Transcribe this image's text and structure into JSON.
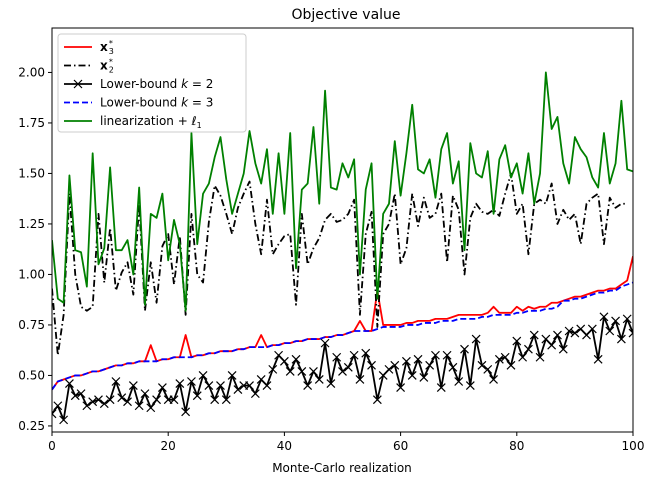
{
  "chart_data": {
    "type": "line",
    "title": "Objective value",
    "xlabel": "Monte-Carlo realization",
    "ylabel": "",
    "xlim": [
      0,
      100
    ],
    "ylim": [
      0.22,
      2.22
    ],
    "xticks": [
      0,
      20,
      40,
      60,
      80,
      100
    ],
    "yticks": [
      0.25,
      0.5,
      0.75,
      1.0,
      1.25,
      1.5,
      1.75,
      2.0
    ],
    "xtick_labels": [
      "0",
      "20",
      "40",
      "60",
      "80",
      "100"
    ],
    "ytick_labels": [
      "0.25",
      "0.50",
      "0.75",
      "1.00",
      "1.25",
      "1.50",
      "1.75",
      "2.00"
    ],
    "grid": false,
    "legend_position": "top-left",
    "series": [
      {
        "name": "x3*",
        "legend_main": "x",
        "legend_sub": "3",
        "legend_sup": "*",
        "color": "#ff0000",
        "style": "solid",
        "values": [
          0.43,
          0.47,
          0.48,
          0.49,
          0.5,
          0.5,
          0.51,
          0.52,
          0.52,
          0.53,
          0.54,
          0.55,
          0.55,
          0.56,
          0.56,
          0.57,
          0.57,
          0.65,
          0.57,
          0.58,
          0.58,
          0.59,
          0.59,
          0.7,
          0.59,
          0.6,
          0.6,
          0.61,
          0.61,
          0.62,
          0.62,
          0.62,
          0.63,
          0.63,
          0.64,
          0.64,
          0.7,
          0.64,
          0.65,
          0.65,
          0.66,
          0.66,
          0.67,
          0.67,
          0.68,
          0.68,
          0.68,
          0.69,
          0.69,
          0.7,
          0.7,
          0.71,
          0.72,
          0.77,
          0.72,
          0.72,
          0.92,
          0.75,
          0.75,
          0.75,
          0.75,
          0.76,
          0.76,
          0.77,
          0.77,
          0.77,
          0.78,
          0.78,
          0.78,
          0.79,
          0.8,
          0.8,
          0.8,
          0.8,
          0.8,
          0.81,
          0.84,
          0.81,
          0.81,
          0.81,
          0.84,
          0.82,
          0.84,
          0.83,
          0.84,
          0.84,
          0.86,
          0.86,
          0.87,
          0.88,
          0.89,
          0.89,
          0.9,
          0.91,
          0.92,
          0.92,
          0.93,
          0.93,
          0.95,
          0.97,
          1.09
        ]
      },
      {
        "name": "x2*",
        "legend_main": "x",
        "legend_sub": "2",
        "legend_sup": "*",
        "color": "#000000",
        "style": "dashdot",
        "values": [
          0.93,
          0.6,
          0.8,
          1.4,
          1.0,
          0.84,
          0.82,
          0.84,
          1.3,
          0.96,
          1.23,
          0.92,
          1.01,
          1.06,
          0.9,
          1.35,
          0.82,
          1.06,
          0.86,
          1.14,
          1.2,
          0.95,
          1.19,
          0.8,
          1.3,
          1.0,
          0.96,
          1.26,
          1.44,
          1.39,
          1.3,
          1.2,
          1.33,
          1.4,
          1.46,
          1.25,
          1.1,
          1.37,
          1.1,
          1.15,
          1.19,
          1.2,
          0.85,
          1.3,
          1.05,
          1.13,
          1.18,
          1.27,
          1.3,
          1.26,
          1.27,
          1.3,
          1.37,
          0.8,
          1.2,
          1.31,
          0.74,
          1.2,
          1.25,
          1.4,
          1.05,
          1.13,
          1.4,
          1.24,
          1.38,
          1.28,
          1.3,
          1.4,
          1.06,
          1.39,
          1.32,
          1.0,
          1.28,
          1.35,
          1.31,
          1.3,
          1.32,
          1.29,
          1.4,
          1.5,
          1.3,
          1.35,
          1.1,
          1.35,
          1.37,
          1.35,
          1.45,
          1.25,
          1.32,
          1.27,
          1.3,
          1.15,
          1.35,
          1.38,
          1.4,
          1.15,
          1.38,
          1.33,
          1.35,
          1.35
        ]
      },
      {
        "name": "Lower-bound k = 2",
        "legend_main": "Lower-bound ",
        "legend_k": "k",
        "legend_tail": " = 2",
        "color": "#000000",
        "style": "solid",
        "marker": "x",
        "values": [
          0.31,
          0.35,
          0.28,
          0.46,
          0.4,
          0.41,
          0.35,
          0.37,
          0.38,
          0.36,
          0.38,
          0.47,
          0.39,
          0.37,
          0.45,
          0.35,
          0.41,
          0.34,
          0.38,
          0.44,
          0.38,
          0.38,
          0.46,
          0.32,
          0.47,
          0.4,
          0.5,
          0.45,
          0.38,
          0.45,
          0.38,
          0.5,
          0.43,
          0.45,
          0.45,
          0.41,
          0.48,
          0.45,
          0.53,
          0.6,
          0.57,
          0.52,
          0.58,
          0.52,
          0.45,
          0.52,
          0.48,
          0.66,
          0.46,
          0.59,
          0.52,
          0.54,
          0.6,
          0.48,
          0.61,
          0.55,
          0.38,
          0.5,
          0.53,
          0.55,
          0.44,
          0.57,
          0.5,
          0.58,
          0.49,
          0.55,
          0.6,
          0.44,
          0.6,
          0.54,
          0.47,
          0.63,
          0.45,
          0.68,
          0.55,
          0.53,
          0.48,
          0.58,
          0.59,
          0.55,
          0.67,
          0.59,
          0.63,
          0.7,
          0.59,
          0.68,
          0.65,
          0.7,
          0.63,
          0.72,
          0.71,
          0.73,
          0.7,
          0.73,
          0.58,
          0.79,
          0.72,
          0.77,
          0.68,
          0.78,
          0.71
        ]
      },
      {
        "name": "Lower-bound k = 3",
        "legend_main": "Lower-bound ",
        "legend_k": "k",
        "legend_tail": " = 3",
        "color": "#0000ff",
        "style": "dashed",
        "values": [
          0.43,
          0.47,
          0.48,
          0.49,
          0.5,
          0.5,
          0.51,
          0.52,
          0.52,
          0.53,
          0.54,
          0.55,
          0.55,
          0.56,
          0.56,
          0.57,
          0.57,
          0.57,
          0.57,
          0.58,
          0.58,
          0.59,
          0.59,
          0.59,
          0.59,
          0.6,
          0.6,
          0.61,
          0.61,
          0.62,
          0.62,
          0.62,
          0.63,
          0.63,
          0.64,
          0.64,
          0.64,
          0.64,
          0.65,
          0.65,
          0.66,
          0.66,
          0.67,
          0.67,
          0.68,
          0.68,
          0.68,
          0.69,
          0.69,
          0.7,
          0.7,
          0.71,
          0.72,
          0.72,
          0.72,
          0.72,
          0.73,
          0.74,
          0.74,
          0.74,
          0.74,
          0.75,
          0.75,
          0.75,
          0.76,
          0.76,
          0.76,
          0.77,
          0.77,
          0.77,
          0.78,
          0.78,
          0.78,
          0.78,
          0.79,
          0.79,
          0.8,
          0.8,
          0.8,
          0.8,
          0.81,
          0.81,
          0.82,
          0.82,
          0.82,
          0.83,
          0.83,
          0.84,
          0.87,
          0.87,
          0.88,
          0.88,
          0.89,
          0.9,
          0.91,
          0.91,
          0.92,
          0.92,
          0.94,
          0.95,
          0.96
        ]
      },
      {
        "name": "linearization + l1",
        "legend_main": "linearization + ",
        "legend_ell": "ℓ",
        "legend_sub": "1",
        "color": "#008000",
        "style": "solid",
        "values": [
          1.17,
          0.88,
          0.86,
          1.49,
          1.12,
          1.11,
          0.94,
          1.6,
          1.05,
          1.13,
          1.53,
          1.12,
          1.12,
          1.17,
          1.0,
          1.43,
          0.85,
          1.3,
          1.28,
          1.4,
          1.07,
          1.27,
          1.15,
          0.82,
          1.7,
          1.15,
          1.4,
          1.45,
          1.58,
          1.68,
          1.47,
          1.3,
          1.4,
          1.5,
          1.71,
          1.55,
          1.45,
          1.62,
          1.3,
          1.6,
          1.3,
          1.7,
          1.03,
          1.42,
          1.45,
          1.73,
          1.35,
          1.91,
          1.43,
          1.42,
          1.55,
          1.48,
          1.57,
          1.0,
          1.42,
          1.55,
          0.88,
          1.3,
          1.35,
          1.66,
          1.39,
          1.6,
          1.84,
          1.52,
          1.5,
          1.57,
          1.38,
          1.62,
          1.7,
          1.45,
          1.56,
          1.12,
          1.65,
          1.5,
          1.48,
          1.61,
          1.3,
          1.57,
          1.64,
          1.48,
          1.55,
          1.4,
          1.6,
          1.35,
          1.5,
          2.0,
          1.72,
          1.78,
          1.55,
          1.45,
          1.68,
          1.62,
          1.58,
          1.48,
          1.43,
          1.7,
          1.45,
          1.55,
          1.86,
          1.52,
          1.51
        ]
      }
    ]
  }
}
